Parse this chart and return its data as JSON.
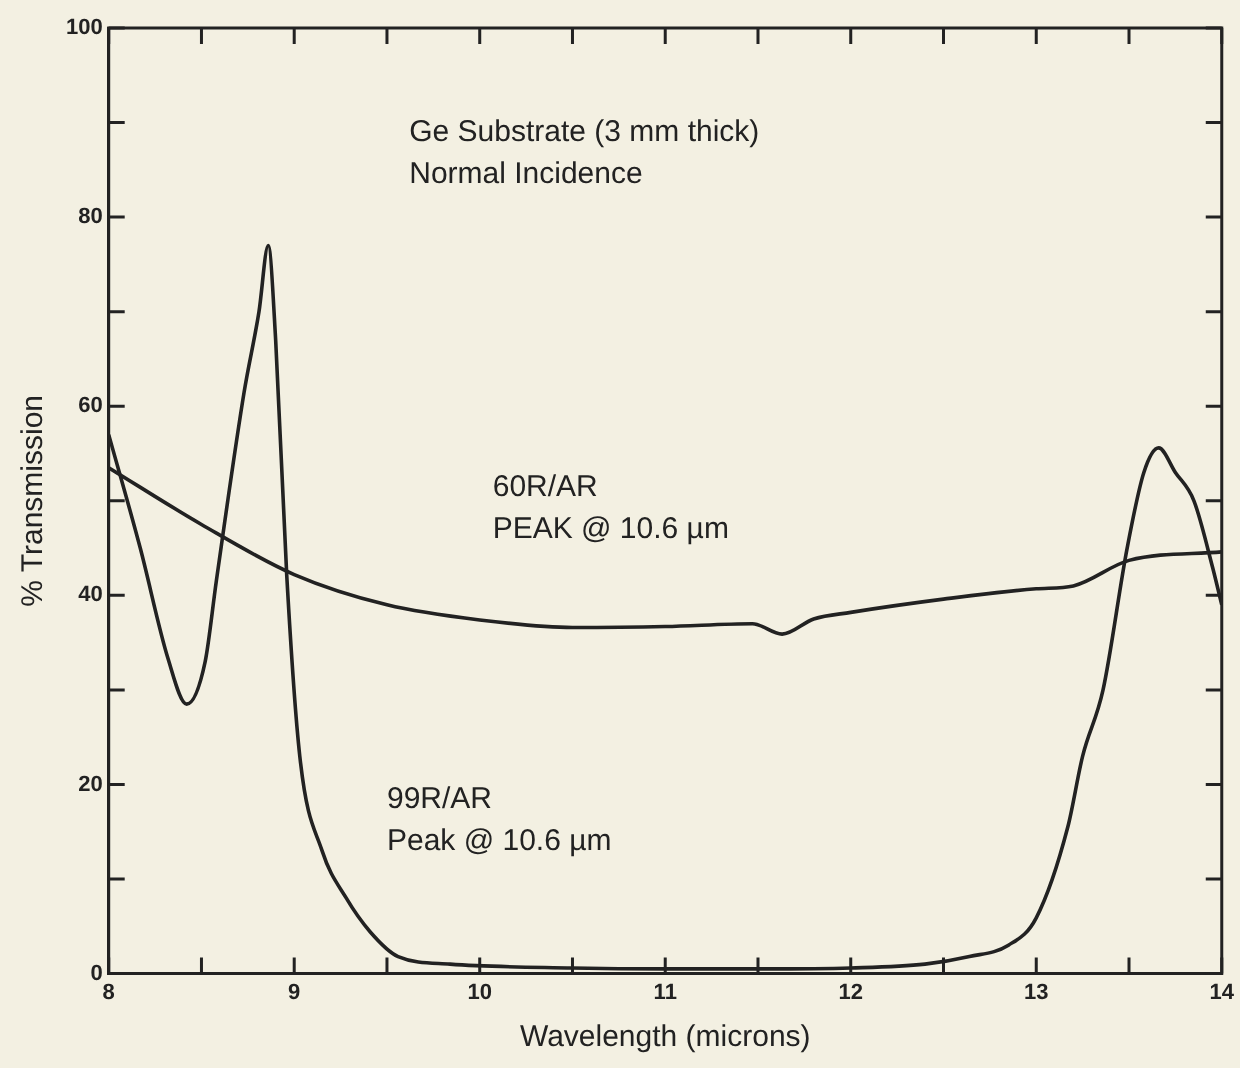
{
  "chart_data": {
    "type": "line",
    "xlabel": "Wavelength (microns)",
    "ylabel": "% Transmission",
    "annotations": [
      "Ge Substrate (3 mm thick)",
      "Normal Incidence"
    ],
    "series": [
      {
        "name": "60R/AR\nPEAK @ 10.6 µm",
        "color": "#222222",
        "x": [
          8.0,
          8.5,
          9.0,
          9.5,
          10.0,
          10.5,
          11.0,
          11.47,
          11.63,
          11.8,
          12.0,
          12.5,
          13.0,
          13.2,
          13.5,
          14.0
        ],
        "values": [
          53.5,
          47.5,
          42.2,
          39,
          37.4,
          36.6,
          36.7,
          37,
          35.9,
          37.5,
          38.2,
          39.6,
          40.7,
          41,
          43.7,
          44.6
        ]
      },
      {
        "name": "99R/AR\nPeak @ 10.6 µm",
        "color": "#222222",
        "x": [
          8.0,
          8.17,
          8.32,
          8.42,
          8.52,
          8.58,
          8.73,
          8.81,
          8.86,
          8.9,
          8.96,
          9.03,
          9.15,
          9.28,
          9.41,
          9.56,
          9.84,
          10.5,
          11.0,
          11.5,
          12.0,
          12.4,
          12.64,
          12.85,
          13.0,
          13.17,
          13.25,
          13.36,
          13.49,
          13.58,
          13.66,
          13.75,
          13.85,
          13.95,
          14.0
        ],
        "values": [
          57,
          45,
          33.3,
          28.5,
          33,
          41.5,
          61.5,
          70,
          77,
          67,
          42,
          23,
          13,
          8,
          4.4,
          1.8,
          1.0,
          0.6,
          0.5,
          0.5,
          0.6,
          1.0,
          1.8,
          3,
          5.9,
          15.5,
          23,
          30,
          45,
          53,
          55.6,
          53,
          50,
          43,
          39
        ]
      }
    ],
    "xlim": [
      8,
      14
    ],
    "xticks": [
      8,
      {
        "value": 8.5,
        "label": null
      },
      9,
      {
        "value": 9.5,
        "label": null
      },
      10,
      {
        "value": 10.5,
        "label": null
      },
      11,
      {
        "value": 11.5,
        "label": null
      },
      12,
      {
        "value": 12.5,
        "label": null
      },
      13,
      {
        "value": 13.5,
        "label": null
      },
      14
    ],
    "ylim": [
      0,
      100
    ],
    "yticks": [
      0,
      {
        "value": 10,
        "label": null
      },
      20,
      {
        "value": 30,
        "label": null
      },
      40,
      {
        "value": 50,
        "label": null
      },
      60,
      {
        "value": 70,
        "label": null
      },
      80,
      {
        "value": 90,
        "label": null
      },
      100
    ],
    "grid": false,
    "legend": false,
    "marker": "none",
    "line_style": "solid"
  }
}
